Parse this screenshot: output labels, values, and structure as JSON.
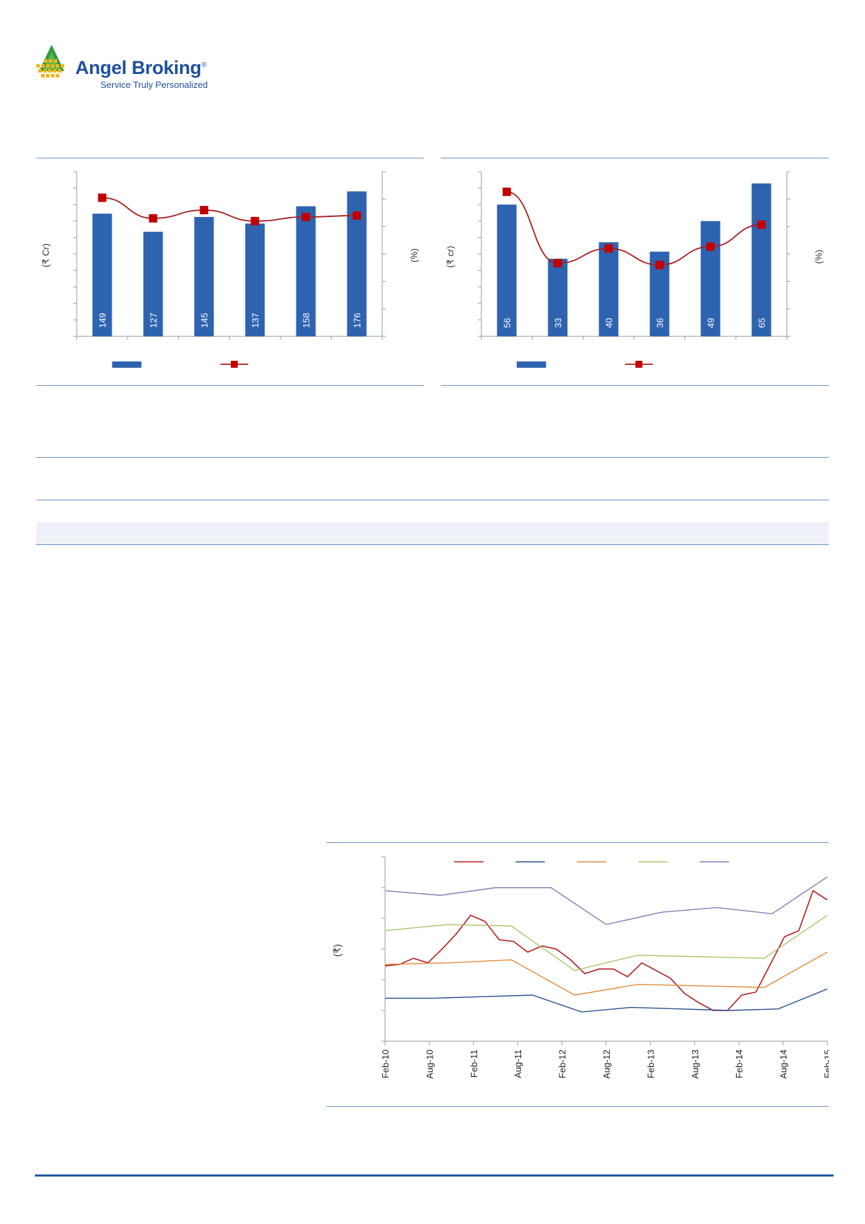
{
  "brand": {
    "name": "Angel Broking",
    "registered_mark": "®",
    "tagline": "Service Truly Personalized"
  },
  "colors": {
    "bar": "#2e63b0",
    "line": "#a71d1d",
    "marker": "#c00000",
    "rule": "#6b8fc9",
    "band_blue": "#27508f",
    "band_orange": "#e08a3a",
    "band_green": "#a8c46a",
    "band_purple": "#8a78b8"
  },
  "chart_data": [
    {
      "id": "left-bar-line",
      "type": "bar",
      "categories": [
        "",
        "",
        "",
        "",
        "",
        ""
      ],
      "series": [
        {
          "values": [
            149,
            127,
            145,
            137,
            158,
            176
          ],
          "data_labels": [
            "149",
            "127",
            "145",
            "137",
            "158",
            "176"
          ]
        },
        {
          "type": "line",
          "values": [
            10.1,
            8.6,
            9.2,
            8.4,
            8.7,
            8.8
          ]
        }
      ],
      "ylabel": "(₹ Cr)",
      "y2label": "(%)",
      "ylim": [
        0,
        200
      ],
      "y2lim": [
        0,
        12
      ],
      "legend": "bottom"
    },
    {
      "id": "right-bar-line",
      "type": "bar",
      "categories": [
        "",
        "",
        "",
        "",
        "",
        ""
      ],
      "series": [
        {
          "values": [
            56,
            33,
            40,
            36,
            49,
            65
          ],
          "data_labels": [
            "56",
            "33",
            "40",
            "36",
            "49",
            "65"
          ]
        },
        {
          "type": "line",
          "values": [
            7.9,
            4.0,
            4.8,
            3.9,
            4.9,
            6.1
          ]
        }
      ],
      "ylabel": "(₹ cr)",
      "y2label": "(%)",
      "ylim": [
        0,
        70
      ],
      "y2lim": [
        0,
        9
      ],
      "legend": "bottom"
    },
    {
      "id": "price-band",
      "type": "line",
      "x_ticks": [
        "Feb-10",
        "Aug-10",
        "Feb-11",
        "Aug-11",
        "Feb-12",
        "Aug-12",
        "Feb-13",
        "Aug-13",
        "Feb-14",
        "Aug-14",
        "Feb-15"
      ],
      "ylabel": "(₹)",
      "ylim": [
        0,
        6
      ],
      "legend": "top",
      "series": [
        {
          "color": "#b31b1b",
          "values": [
            2.45,
            2.5,
            2.7,
            2.55,
            3.0,
            3.5,
            4.1,
            3.9,
            3.3,
            3.25,
            2.9,
            3.1,
            3.0,
            2.65,
            2.2,
            2.35,
            2.35,
            2.1,
            2.55,
            2.3,
            2.05,
            1.55,
            1.25,
            1.0,
            1.0,
            1.5,
            1.6,
            2.5,
            3.4,
            3.6,
            4.9,
            4.6
          ]
        },
        {
          "color": "#27508f",
          "values": [
            1.4,
            1.4,
            1.45,
            1.5,
            0.95,
            1.1,
            1.05,
            1.0,
            1.05,
            1.7
          ]
        },
        {
          "color": "#e08a3a",
          "values": [
            2.5,
            2.55,
            2.65,
            1.5,
            1.85,
            1.8,
            1.75,
            2.9
          ]
        },
        {
          "color": "#a8c46a",
          "values": [
            3.6,
            3.8,
            3.75,
            2.3,
            2.8,
            2.75,
            2.7,
            4.1
          ]
        },
        {
          "color": "#8a78b8",
          "values": [
            4.9,
            4.75,
            5.0,
            5.0,
            3.8,
            4.2,
            4.35,
            4.15,
            5.35
          ]
        }
      ]
    }
  ]
}
